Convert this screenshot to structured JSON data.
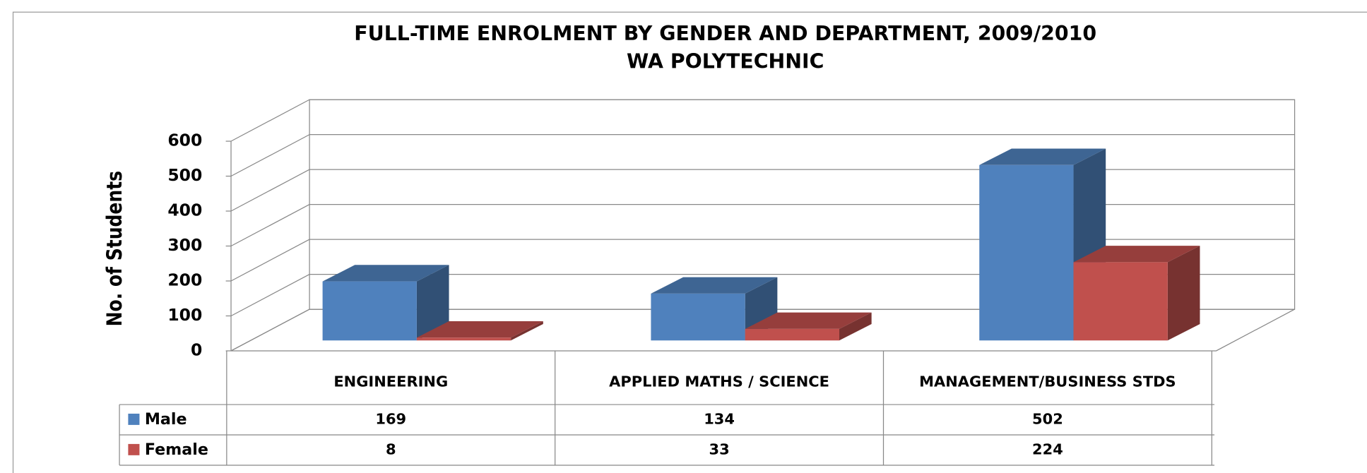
{
  "chart_data": {
    "type": "bar3d",
    "title": [
      "FULL-TIME ENROLMENT BY GENDER AND DEPARTMENT, 2009/2010",
      "WA POLYTECHNIC"
    ],
    "y_label": "No. of Students",
    "categories": [
      "ENGINEERING",
      "APPLIED MATHS / SCIENCE",
      "MANAGEMENT/BUSINESS STDS"
    ],
    "series": [
      {
        "name": "Male",
        "color": "#4f81bd",
        "values": [
          169,
          134,
          502
        ]
      },
      {
        "name": "Female",
        "color": "#c0504d",
        "values": [
          8,
          33,
          224
        ]
      }
    ],
    "ylim": [
      0,
      600
    ],
    "yticks": [
      0,
      100,
      200,
      300,
      400,
      500,
      600
    ],
    "grid": true,
    "data_table": true
  }
}
